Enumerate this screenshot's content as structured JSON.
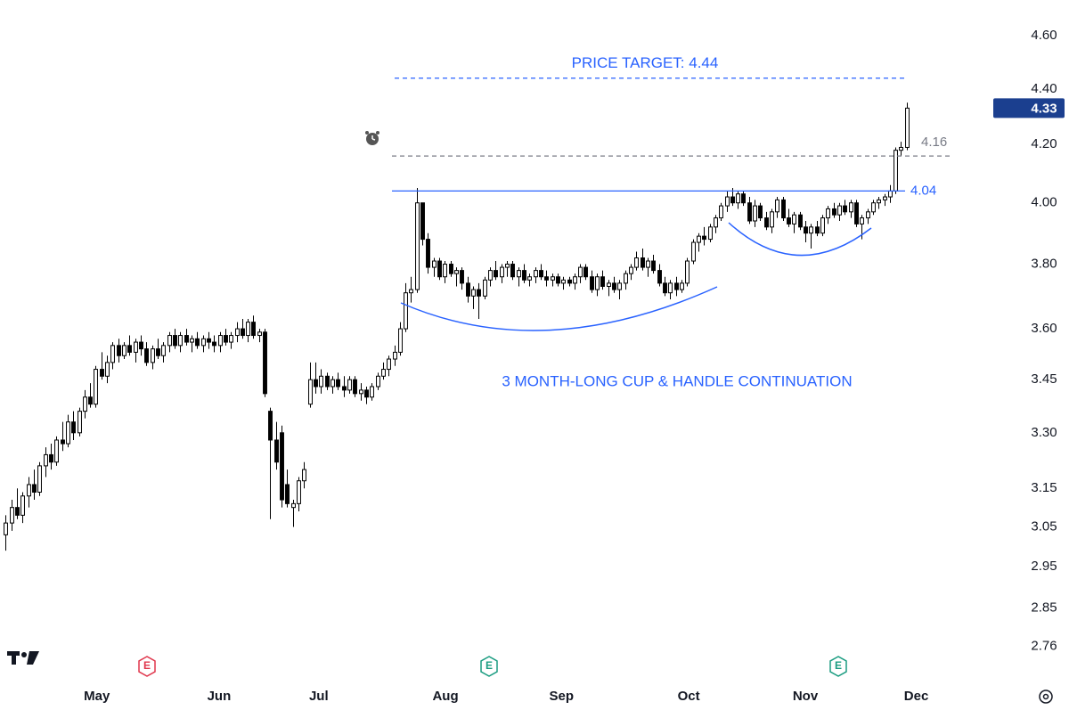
{
  "chart_data": {
    "type": "candlestick",
    "log_scale": true,
    "ylim": [
      2.69,
      4.74
    ],
    "xlim": [
      -1,
      173
    ],
    "yticks": [
      {
        "value": 4.6,
        "label": "4.60"
      },
      {
        "value": 4.4,
        "label": "4.40"
      },
      {
        "value": 4.2,
        "label": "4.20"
      },
      {
        "value": 4.0,
        "label": "4.00"
      },
      {
        "value": 3.8,
        "label": "3.80"
      },
      {
        "value": 3.6,
        "label": "3.60"
      },
      {
        "value": 3.45,
        "label": "3.45"
      },
      {
        "value": 3.3,
        "label": "3.30"
      },
      {
        "value": 3.15,
        "label": "3.15"
      },
      {
        "value": 3.05,
        "label": "3.05"
      },
      {
        "value": 2.95,
        "label": "2.95"
      },
      {
        "value": 2.85,
        "label": "2.85"
      },
      {
        "value": 2.76,
        "label": "2.76"
      }
    ],
    "xticks": [
      {
        "value": 16.2,
        "label": "May"
      },
      {
        "value": 37.9,
        "label": "Jun"
      },
      {
        "value": 55.6,
        "label": "Jul"
      },
      {
        "value": 78.1,
        "label": "Aug"
      },
      {
        "value": 98.7,
        "label": "Sep"
      },
      {
        "value": 121.3,
        "label": "Oct"
      },
      {
        "value": 142,
        "label": "Nov"
      },
      {
        "value": 161.7,
        "label": "Dec"
      }
    ],
    "up_color": "#ffffff",
    "down_color": "#000000",
    "wick_color": "#000000",
    "last_price": {
      "value": 4.33,
      "label": "4.33",
      "color": "#1b3f8f"
    },
    "target": {
      "value": 4.44,
      "text": "PRICE TARGET: 4.44",
      "color": "#2962ff"
    },
    "levels": [
      {
        "value": 4.16,
        "label": "4.16",
        "color": "#787b86",
        "dashed": true
      },
      {
        "value": 4.04,
        "label": "4.04",
        "color": "#2962ff",
        "dashed": false
      }
    ],
    "annotation": "3 MONTH-LONG CUP & HANDLE CONTINUATION",
    "earnings_markers": [
      "E",
      "E",
      "E"
    ],
    "ohlc": [
      [
        3.03,
        3.08,
        2.99,
        3.06
      ],
      [
        3.06,
        3.12,
        3.04,
        3.1
      ],
      [
        3.1,
        3.15,
        3.07,
        3.08
      ],
      [
        3.08,
        3.14,
        3.06,
        3.13
      ],
      [
        3.13,
        3.18,
        3.1,
        3.16
      ],
      [
        3.16,
        3.2,
        3.12,
        3.14
      ],
      [
        3.14,
        3.22,
        3.13,
        3.21
      ],
      [
        3.21,
        3.26,
        3.18,
        3.24
      ],
      [
        3.24,
        3.27,
        3.2,
        3.22
      ],
      [
        3.22,
        3.29,
        3.21,
        3.28
      ],
      [
        3.28,
        3.33,
        3.25,
        3.27
      ],
      [
        3.27,
        3.35,
        3.26,
        3.33
      ],
      [
        3.33,
        3.36,
        3.28,
        3.3
      ],
      [
        3.3,
        3.37,
        3.29,
        3.36
      ],
      [
        3.36,
        3.42,
        3.34,
        3.4
      ],
      [
        3.4,
        3.44,
        3.37,
        3.38
      ],
      [
        3.38,
        3.49,
        3.37,
        3.48
      ],
      [
        3.48,
        3.53,
        3.45,
        3.46
      ],
      [
        3.46,
        3.52,
        3.44,
        3.5
      ],
      [
        3.5,
        3.56,
        3.48,
        3.55
      ],
      [
        3.55,
        3.57,
        3.5,
        3.52
      ],
      [
        3.52,
        3.56,
        3.51,
        3.55
      ],
      [
        3.55,
        3.58,
        3.52,
        3.53
      ],
      [
        3.53,
        3.57,
        3.5,
        3.56
      ],
      [
        3.56,
        3.58,
        3.52,
        3.54
      ],
      [
        3.54,
        3.56,
        3.49,
        3.5
      ],
      [
        3.5,
        3.55,
        3.48,
        3.54
      ],
      [
        3.54,
        3.57,
        3.51,
        3.52
      ],
      [
        3.52,
        3.56,
        3.5,
        3.55
      ],
      [
        3.55,
        3.59,
        3.53,
        3.58
      ],
      [
        3.58,
        3.6,
        3.54,
        3.55
      ],
      [
        3.55,
        3.59,
        3.53,
        3.58
      ],
      [
        3.58,
        3.6,
        3.55,
        3.56
      ],
      [
        3.56,
        3.58,
        3.53,
        3.57
      ],
      [
        3.57,
        3.59,
        3.54,
        3.55
      ],
      [
        3.55,
        3.58,
        3.53,
        3.57
      ],
      [
        3.57,
        3.59,
        3.54,
        3.56
      ],
      [
        3.56,
        3.58,
        3.53,
        3.55
      ],
      [
        3.55,
        3.59,
        3.53,
        3.58
      ],
      [
        3.58,
        3.6,
        3.55,
        3.56
      ],
      [
        3.56,
        3.59,
        3.54,
        3.58
      ],
      [
        3.58,
        3.62,
        3.56,
        3.6
      ],
      [
        3.6,
        3.63,
        3.57,
        3.58
      ],
      [
        3.58,
        3.63,
        3.56,
        3.62
      ],
      [
        3.62,
        3.64,
        3.57,
        3.58
      ],
      [
        3.58,
        3.6,
        3.56,
        3.59
      ],
      [
        3.59,
        3.6,
        3.4,
        3.41
      ],
      [
        3.36,
        3.37,
        3.07,
        3.28
      ],
      [
        3.28,
        3.33,
        3.2,
        3.22
      ],
      [
        3.3,
        3.32,
        3.1,
        3.12
      ],
      [
        3.16,
        3.2,
        3.1,
        3.11
      ],
      [
        3.1,
        3.12,
        3.05,
        3.11
      ],
      [
        3.11,
        3.18,
        3.09,
        3.17
      ],
      [
        3.17,
        3.22,
        3.15,
        3.2
      ],
      [
        3.38,
        3.5,
        3.37,
        3.45
      ],
      [
        3.45,
        3.5,
        3.41,
        3.43
      ],
      [
        3.43,
        3.48,
        3.41,
        3.46
      ],
      [
        3.46,
        3.47,
        3.42,
        3.43
      ],
      [
        3.43,
        3.46,
        3.41,
        3.45
      ],
      [
        3.45,
        3.47,
        3.42,
        3.43
      ],
      [
        3.43,
        3.46,
        3.4,
        3.42
      ],
      [
        3.42,
        3.46,
        3.41,
        3.45
      ],
      [
        3.45,
        3.46,
        3.4,
        3.41
      ],
      [
        3.41,
        3.44,
        3.39,
        3.42
      ],
      [
        3.42,
        3.43,
        3.38,
        3.4
      ],
      [
        3.4,
        3.44,
        3.39,
        3.43
      ],
      [
        3.43,
        3.47,
        3.42,
        3.46
      ],
      [
        3.46,
        3.5,
        3.45,
        3.48
      ],
      [
        3.48,
        3.52,
        3.46,
        3.51
      ],
      [
        3.51,
        3.55,
        3.49,
        3.53
      ],
      [
        3.53,
        3.62,
        3.52,
        3.6
      ],
      [
        3.6,
        3.74,
        3.59,
        3.71
      ],
      [
        3.71,
        3.76,
        3.68,
        3.72
      ],
      [
        3.72,
        4.05,
        3.71,
        4.0
      ],
      [
        4.0,
        4.0,
        3.86,
        3.88
      ],
      [
        3.88,
        3.9,
        3.77,
        3.79
      ],
      [
        3.79,
        3.82,
        3.76,
        3.81
      ],
      [
        3.81,
        3.82,
        3.75,
        3.76
      ],
      [
        3.76,
        3.81,
        3.74,
        3.8
      ],
      [
        3.8,
        3.81,
        3.76,
        3.77
      ],
      [
        3.77,
        3.79,
        3.73,
        3.78
      ],
      [
        3.78,
        3.79,
        3.72,
        3.74
      ],
      [
        3.74,
        3.76,
        3.68,
        3.7
      ],
      [
        3.7,
        3.73,
        3.66,
        3.72
      ],
      [
        3.72,
        3.74,
        3.63,
        3.7
      ],
      [
        3.7,
        3.76,
        3.69,
        3.75
      ],
      [
        3.75,
        3.79,
        3.73,
        3.78
      ],
      [
        3.78,
        3.81,
        3.75,
        3.76
      ],
      [
        3.76,
        3.8,
        3.74,
        3.79
      ],
      [
        3.79,
        3.81,
        3.76,
        3.8
      ],
      [
        3.8,
        3.81,
        3.75,
        3.76
      ],
      [
        3.76,
        3.79,
        3.73,
        3.78
      ],
      [
        3.78,
        3.8,
        3.74,
        3.75
      ],
      [
        3.75,
        3.77,
        3.73,
        3.76
      ],
      [
        3.76,
        3.79,
        3.74,
        3.78
      ],
      [
        3.78,
        3.8,
        3.75,
        3.76
      ],
      [
        3.76,
        3.78,
        3.73,
        3.75
      ],
      [
        3.75,
        3.77,
        3.73,
        3.76
      ],
      [
        3.76,
        3.77,
        3.73,
        3.74
      ],
      [
        3.74,
        3.76,
        3.72,
        3.75
      ],
      [
        3.75,
        3.76,
        3.73,
        3.74
      ],
      [
        3.74,
        3.77,
        3.72,
        3.76
      ],
      [
        3.76,
        3.8,
        3.74,
        3.79
      ],
      [
        3.79,
        3.8,
        3.75,
        3.76
      ],
      [
        3.76,
        3.78,
        3.71,
        3.72
      ],
      [
        3.72,
        3.77,
        3.7,
        3.76
      ],
      [
        3.76,
        3.78,
        3.72,
        3.73
      ],
      [
        3.73,
        3.75,
        3.7,
        3.74
      ],
      [
        3.74,
        3.76,
        3.71,
        3.72
      ],
      [
        3.72,
        3.75,
        3.69,
        3.74
      ],
      [
        3.74,
        3.78,
        3.72,
        3.77
      ],
      [
        3.77,
        3.8,
        3.75,
        3.79
      ],
      [
        3.79,
        3.84,
        3.78,
        3.82
      ],
      [
        3.82,
        3.85,
        3.78,
        3.79
      ],
      [
        3.79,
        3.82,
        3.76,
        3.81
      ],
      [
        3.81,
        3.83,
        3.77,
        3.78
      ],
      [
        3.78,
        3.8,
        3.73,
        3.74
      ],
      [
        3.74,
        3.76,
        3.7,
        3.71
      ],
      [
        3.71,
        3.75,
        3.69,
        3.74
      ],
      [
        3.74,
        3.76,
        3.7,
        3.72
      ],
      [
        3.72,
        3.75,
        3.71,
        3.74
      ],
      [
        3.74,
        3.82,
        3.73,
        3.81
      ],
      [
        3.81,
        3.88,
        3.8,
        3.87
      ],
      [
        3.87,
        3.9,
        3.84,
        3.89
      ],
      [
        3.89,
        3.92,
        3.86,
        3.88
      ],
      [
        3.88,
        3.93,
        3.87,
        3.92
      ],
      [
        3.92,
        3.96,
        3.9,
        3.95
      ],
      [
        3.95,
        4.0,
        3.94,
        3.99
      ],
      [
        3.99,
        4.04,
        3.97,
        4.02
      ],
      [
        4.02,
        4.05,
        3.99,
        4.0
      ],
      [
        4.0,
        4.04,
        3.98,
        4.03
      ],
      [
        4.03,
        4.04,
        3.99,
        4.0
      ],
      [
        4.0,
        4.02,
        3.93,
        3.94
      ],
      [
        3.94,
        4.01,
        3.92,
        3.99
      ],
      [
        3.99,
        4.0,
        3.94,
        3.95
      ],
      [
        3.95,
        3.97,
        3.91,
        3.92
      ],
      [
        3.92,
        3.98,
        3.9,
        3.97
      ],
      [
        3.97,
        4.02,
        3.95,
        4.01
      ],
      [
        4.01,
        4.02,
        3.94,
        3.95
      ],
      [
        3.95,
        3.98,
        3.92,
        3.93
      ],
      [
        3.93,
        3.97,
        3.9,
        3.96
      ],
      [
        3.96,
        3.97,
        3.91,
        3.92
      ],
      [
        3.92,
        3.94,
        3.87,
        3.9
      ],
      [
        3.9,
        3.93,
        3.85,
        3.92
      ],
      [
        3.92,
        3.94,
        3.89,
        3.9
      ],
      [
        3.9,
        3.96,
        3.89,
        3.95
      ],
      [
        3.95,
        3.99,
        3.93,
        3.98
      ],
      [
        3.98,
        4.0,
        3.95,
        3.96
      ],
      [
        3.96,
        4.0,
        3.94,
        3.99
      ],
      [
        3.99,
        4.01,
        3.96,
        3.97
      ],
      [
        3.97,
        4.01,
        3.95,
        4.0
      ],
      [
        4.0,
        4.01,
        3.92,
        3.93
      ],
      [
        3.93,
        3.96,
        3.88,
        3.95
      ],
      [
        3.95,
        3.98,
        3.93,
        3.97
      ],
      [
        3.97,
        4.01,
        3.96,
        4.0
      ],
      [
        4.0,
        4.02,
        3.98,
        4.01
      ],
      [
        4.01,
        4.03,
        3.99,
        4.02
      ],
      [
        4.02,
        4.06,
        4.0,
        4.04
      ],
      [
        4.04,
        4.19,
        4.03,
        4.18
      ],
      [
        4.18,
        4.21,
        4.16,
        4.19
      ],
      [
        4.19,
        4.35,
        4.18,
        4.33
      ]
    ]
  }
}
